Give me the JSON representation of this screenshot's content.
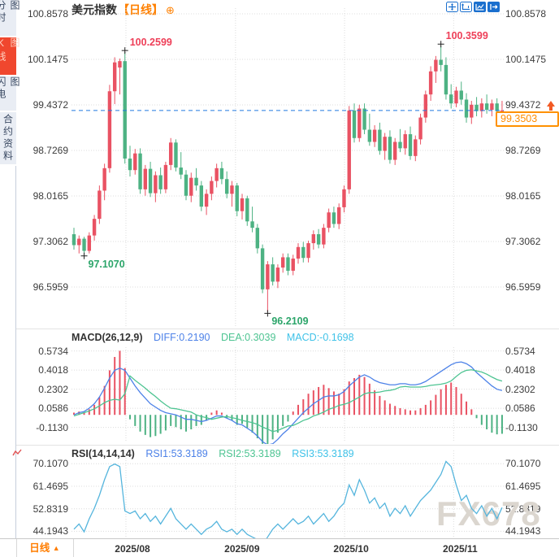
{
  "app": {
    "title": "美元指数",
    "timeframe_tag": "【日线】",
    "period_icon": "⊕",
    "watermark": "FX678",
    "toolbar_icons": [
      "crosshair-icon",
      "axis-scale-icon",
      "chart-style-icon",
      "exit-fullscreen-icon"
    ]
  },
  "sidebar": {
    "items": [
      {
        "label": "分时图",
        "active": false
      },
      {
        "label": "K线图",
        "active": true
      },
      {
        "label": "闪电图",
        "active": false
      },
      {
        "label": "合约资料",
        "active": false
      }
    ]
  },
  "bottom_bar": {
    "timeframe_label": "日线",
    "arrow": "▲"
  },
  "colors": {
    "up": "#e95263",
    "down": "#4db283",
    "accent_orange": "#ff8000",
    "annotation_high": "#ee3f58",
    "annotation_low": "#2ca56a",
    "diff_line": "#4d82e8",
    "dea_line": "#4ec492",
    "rsi_line": "#55b5dd",
    "dashed_line": "#2079e0",
    "grid": "#dcdcdc",
    "toolbar_blue": "#1a6fce"
  },
  "main_chart": {
    "y_axis_labels": [
      "100.8578",
      "100.1475",
      "99.4372",
      "98.7269",
      "98.0165",
      "97.3062",
      "96.5959"
    ],
    "current_price": "99.3503",
    "annotations": {
      "high1": "100.2599",
      "high2": "100.3599",
      "low1": "97.1070",
      "low2": "96.2109"
    }
  },
  "macd_panel": {
    "title": "MACD(26,12,9)",
    "diff_label": "DIFF:0.2190",
    "dea_label": "DEA:0.3039",
    "macd_label": "MACD:-0.1698",
    "y_axis_labels": [
      "0.5734",
      "0.4018",
      "0.2302",
      "0.0586",
      "-0.1130"
    ]
  },
  "rsi_panel": {
    "title": "RSI(14,14,14)",
    "rsi1_label": "RSI1:53.3189",
    "rsi2_label": "RSI2:53.3189",
    "rsi3_label": "RSI3:53.3189",
    "y_axis_labels": [
      "70.1070",
      "61.4695",
      "52.8319",
      "44.1943"
    ]
  },
  "x_axis": {
    "labels": [
      "2025/08",
      "2025/09",
      "2025/10",
      "2025/11"
    ]
  },
  "chart_data": {
    "type": "candlestick",
    "symbol": "美元指数",
    "period": "日线",
    "price_axis": [
      100.8578,
      100.1475,
      99.4372,
      98.7269,
      98.0165,
      97.3062,
      96.5959
    ],
    "last_price": 99.3503,
    "high_annotations": [
      {
        "label": "100.2599",
        "index": 10
      },
      {
        "label": "100.3599",
        "index": 72
      }
    ],
    "low_annotations": [
      {
        "label": "97.1070",
        "index": 2
      },
      {
        "label": "96.2109",
        "index": 38
      }
    ],
    "month_ticks": [
      {
        "label": "2025/08",
        "index": 10.2
      },
      {
        "label": "2025/09",
        "index": 31.7
      },
      {
        "label": "2025/10",
        "index": 53.1
      },
      {
        "label": "2025/11",
        "index": 74.5
      }
    ],
    "candles": [
      [
        97.42,
        97.52,
        97.18,
        97.25
      ],
      [
        97.25,
        97.4,
        97.12,
        97.35
      ],
      [
        97.35,
        97.38,
        97.107,
        97.16
      ],
      [
        97.16,
        97.45,
        97.12,
        97.4
      ],
      [
        97.4,
        97.72,
        97.32,
        97.66
      ],
      [
        97.66,
        98.18,
        97.58,
        98.1
      ],
      [
        98.1,
        98.52,
        97.95,
        98.45
      ],
      [
        98.45,
        99.75,
        98.38,
        99.65
      ],
      [
        99.65,
        100.18,
        99.45,
        100.1
      ],
      [
        100.02,
        100.16,
        99.6,
        100.12
      ],
      [
        100.12,
        100.2599,
        98.52,
        98.6
      ],
      [
        98.6,
        98.8,
        98.32,
        98.42
      ],
      [
        98.42,
        98.75,
        98.35,
        98.68
      ],
      [
        98.68,
        98.76,
        98.05,
        98.12
      ],
      [
        98.12,
        98.5,
        98.02,
        98.44
      ],
      [
        98.44,
        98.55,
        98.0,
        98.06
      ],
      [
        98.06,
        98.4,
        97.92,
        98.34
      ],
      [
        98.34,
        98.46,
        98.05,
        98.12
      ],
      [
        98.12,
        98.55,
        98.06,
        98.5
      ],
      [
        98.5,
        98.92,
        98.42,
        98.85
      ],
      [
        98.85,
        98.9,
        98.4,
        98.46
      ],
      [
        98.46,
        98.7,
        98.28,
        98.35
      ],
      [
        98.35,
        98.42,
        97.95,
        98.02
      ],
      [
        98.02,
        98.38,
        97.92,
        98.3
      ],
      [
        98.3,
        98.45,
        98.1,
        98.18
      ],
      [
        98.18,
        98.25,
        97.78,
        97.85
      ],
      [
        97.85,
        98.12,
        97.72,
        98.05
      ],
      [
        98.05,
        98.32,
        97.95,
        98.25
      ],
      [
        98.25,
        98.52,
        98.15,
        98.45
      ],
      [
        98.45,
        98.55,
        98.2,
        98.28
      ],
      [
        98.28,
        98.4,
        97.98,
        98.05
      ],
      [
        98.05,
        98.25,
        97.85,
        98.18
      ],
      [
        98.18,
        98.22,
        97.7,
        97.78
      ],
      [
        97.78,
        98.05,
        97.65,
        97.98
      ],
      [
        97.98,
        98.02,
        97.55,
        97.62
      ],
      [
        97.62,
        97.85,
        97.45,
        97.52
      ],
      [
        97.52,
        97.58,
        97.12,
        97.2
      ],
      [
        97.2,
        97.26,
        96.5,
        96.56
      ],
      [
        96.56,
        97.0,
        96.2109,
        96.95
      ],
      [
        96.95,
        97.06,
        96.62,
        96.68
      ],
      [
        96.68,
        96.95,
        96.58,
        96.9
      ],
      [
        96.9,
        97.12,
        96.82,
        97.06
      ],
      [
        97.06,
        97.12,
        96.78,
        96.85
      ],
      [
        96.85,
        97.1,
        96.78,
        97.04
      ],
      [
        97.04,
        97.28,
        96.96,
        97.22
      ],
      [
        97.22,
        97.3,
        96.98,
        97.05
      ],
      [
        97.05,
        97.32,
        96.98,
        97.28
      ],
      [
        97.28,
        97.48,
        97.18,
        97.42
      ],
      [
        97.42,
        97.5,
        97.2,
        97.26
      ],
      [
        97.26,
        97.58,
        97.2,
        97.52
      ],
      [
        97.52,
        97.82,
        97.45,
        97.76
      ],
      [
        97.76,
        97.85,
        97.52,
        97.58
      ],
      [
        97.58,
        97.9,
        97.5,
        97.84
      ],
      [
        97.84,
        98.18,
        97.76,
        98.12
      ],
      [
        98.12,
        99.42,
        98.05,
        99.35
      ],
      [
        99.35,
        99.46,
        98.85,
        98.92
      ],
      [
        98.92,
        99.44,
        98.86,
        99.38
      ],
      [
        99.38,
        99.46,
        98.98,
        99.05
      ],
      [
        99.05,
        99.3,
        98.8,
        98.86
      ],
      [
        98.86,
        99.12,
        98.78,
        99.05
      ],
      [
        99.05,
        99.16,
        98.66,
        98.72
      ],
      [
        98.72,
        99.0,
        98.58,
        98.94
      ],
      [
        98.94,
        99.04,
        98.52,
        98.58
      ],
      [
        98.58,
        98.92,
        98.5,
        98.86
      ],
      [
        98.86,
        99.06,
        98.7,
        98.76
      ],
      [
        98.76,
        99.04,
        98.66,
        98.98
      ],
      [
        98.98,
        99.1,
        98.58,
        98.64
      ],
      [
        98.64,
        98.96,
        98.56,
        98.9
      ],
      [
        98.9,
        99.3,
        98.82,
        99.24
      ],
      [
        99.24,
        99.66,
        99.16,
        99.6
      ],
      [
        99.6,
        100.04,
        99.5,
        99.96
      ],
      [
        99.96,
        100.2,
        99.78,
        100.14
      ],
      [
        100.14,
        100.3599,
        99.96,
        100.06
      ],
      [
        100.06,
        100.18,
        99.52,
        99.6
      ],
      [
        99.6,
        99.76,
        99.38,
        99.46
      ],
      [
        99.46,
        99.72,
        99.4,
        99.66
      ],
      [
        99.66,
        99.8,
        99.44,
        99.52
      ],
      [
        99.52,
        99.62,
        99.16,
        99.24
      ],
      [
        99.24,
        99.5,
        99.14,
        99.44
      ],
      [
        99.44,
        99.56,
        99.26,
        99.34
      ],
      [
        99.34,
        99.54,
        99.24,
        99.46
      ],
      [
        99.46,
        99.6,
        99.3,
        99.36
      ],
      [
        99.36,
        99.52,
        99.26,
        99.46
      ],
      [
        99.46,
        99.54,
        99.28,
        99.34
      ],
      [
        99.34,
        99.5,
        99.22,
        99.3503
      ]
    ],
    "macd": {
      "axis": [
        0.5734,
        0.4018,
        0.2302,
        0.0586,
        -0.113
      ],
      "diff_value": 0.219,
      "dea_value": 0.3039,
      "macd_value": -0.1698,
      "hist": [
        0.02,
        0.03,
        0.02,
        0.05,
        0.09,
        0.16,
        0.26,
        0.4,
        0.52,
        0.575,
        0.42,
        -0.04,
        -0.1,
        -0.15,
        -0.18,
        -0.2,
        -0.19,
        -0.17,
        -0.14,
        -0.1,
        -0.11,
        -0.13,
        -0.15,
        -0.13,
        -0.1,
        -0.09,
        -0.05,
        0.02,
        0.04,
        0.02,
        -0.03,
        -0.05,
        -0.09,
        -0.08,
        -0.12,
        -0.16,
        -0.21,
        -0.26,
        -0.285,
        -0.22,
        -0.16,
        -0.1,
        -0.06,
        0.03,
        0.09,
        0.14,
        0.19,
        0.22,
        0.25,
        0.27,
        0.24,
        0.21,
        0.19,
        0.23,
        0.3,
        0.33,
        0.36,
        0.34,
        0.28,
        0.22,
        0.17,
        0.13,
        0.1,
        0.08,
        0.06,
        0.05,
        0.04,
        0.04,
        0.06,
        0.09,
        0.13,
        0.18,
        0.23,
        0.27,
        0.29,
        0.25,
        0.19,
        0.12,
        0.05,
        -0.03,
        -0.09,
        -0.13,
        -0.16,
        -0.175,
        -0.1698
      ],
      "diff": [
        0.0,
        0.02,
        0.03,
        0.06,
        0.1,
        0.16,
        0.24,
        0.33,
        0.4,
        0.42,
        0.4,
        0.33,
        0.26,
        0.2,
        0.15,
        0.1,
        0.07,
        0.04,
        0.02,
        0.01,
        0.0,
        -0.02,
        -0.04,
        -0.04,
        -0.05,
        -0.06,
        -0.05,
        -0.03,
        -0.01,
        -0.01,
        -0.03,
        -0.05,
        -0.08,
        -0.09,
        -0.12,
        -0.15,
        -0.19,
        -0.24,
        -0.27,
        -0.26,
        -0.22,
        -0.17,
        -0.13,
        -0.08,
        -0.03,
        0.02,
        0.06,
        0.1,
        0.13,
        0.16,
        0.17,
        0.17,
        0.18,
        0.21,
        0.26,
        0.3,
        0.34,
        0.36,
        0.34,
        0.31,
        0.29,
        0.28,
        0.27,
        0.27,
        0.28,
        0.28,
        0.27,
        0.27,
        0.28,
        0.3,
        0.33,
        0.36,
        0.39,
        0.42,
        0.45,
        0.47,
        0.475,
        0.46,
        0.43,
        0.38,
        0.34,
        0.3,
        0.26,
        0.23,
        0.219
      ]
    },
    "rsi": {
      "axis": [
        70.107,
        61.4695,
        52.8319,
        44.1943
      ],
      "final_value": 53.3189,
      "values": [
        45,
        47,
        44,
        49,
        53,
        58,
        64,
        69,
        70,
        69,
        52,
        51,
        52,
        49,
        51,
        48,
        50,
        47,
        50,
        53,
        49,
        47,
        45,
        47,
        45,
        43,
        45,
        46,
        48,
        45,
        44,
        45,
        43,
        45,
        43,
        42,
        41,
        39,
        42,
        45,
        47,
        45,
        47,
        49,
        47,
        48,
        50,
        47,
        49,
        51,
        48,
        50,
        53,
        55,
        62,
        58,
        64,
        60,
        55,
        57,
        53,
        55,
        50,
        53,
        51,
        54,
        50,
        53,
        56,
        58,
        60,
        63,
        66,
        71,
        69,
        62,
        56,
        58,
        53,
        51,
        54,
        50,
        53,
        49,
        53.3
      ]
    }
  }
}
